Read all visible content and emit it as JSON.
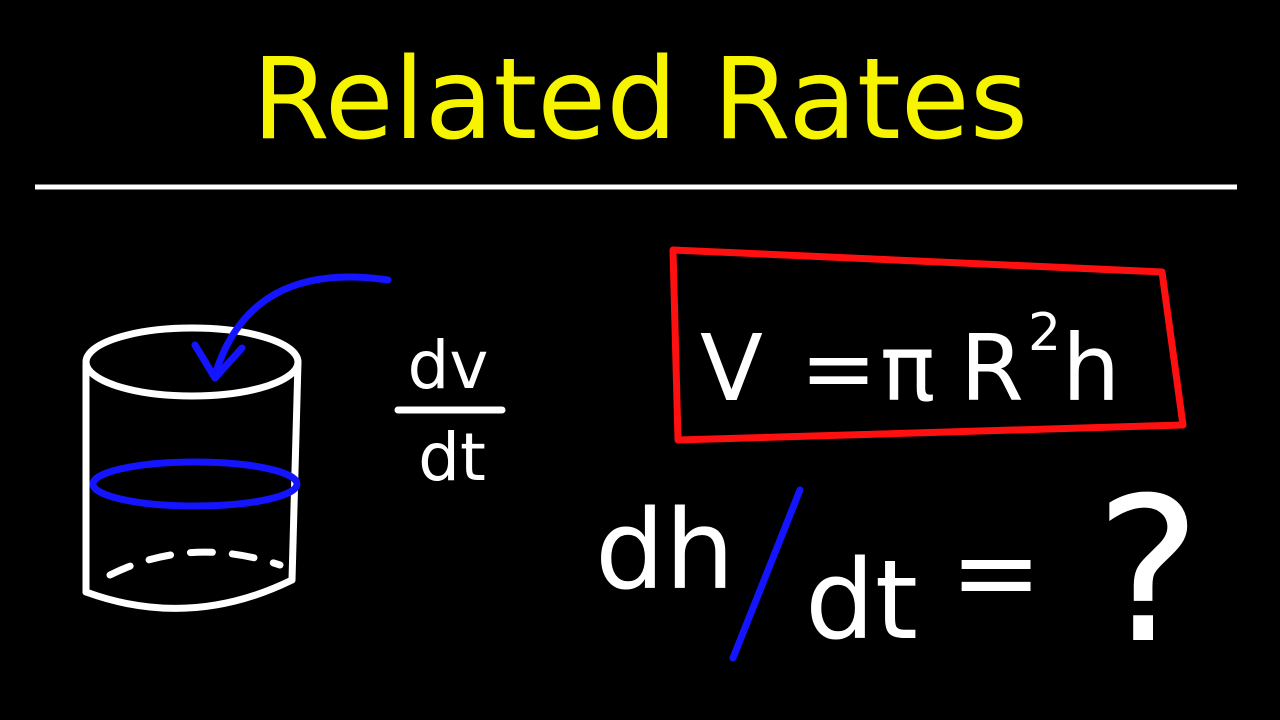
{
  "title": "Related Rates",
  "colors": {
    "background": "#000000",
    "title": "#f7f400",
    "chalk": "#ffffff",
    "accent_blue": "#1414ff",
    "box_red": "#ff1010"
  },
  "diagram": {
    "shape": "cylinder",
    "rate_numerator": "dv",
    "rate_denominator": "dt"
  },
  "formula": {
    "lhs": "V",
    "equals": "=",
    "pi": "π",
    "radius": "R",
    "exponent": "2",
    "height": "h"
  },
  "question": {
    "numerator": "dh",
    "denominator": "dt",
    "equals": "=",
    "unknown": "?"
  }
}
